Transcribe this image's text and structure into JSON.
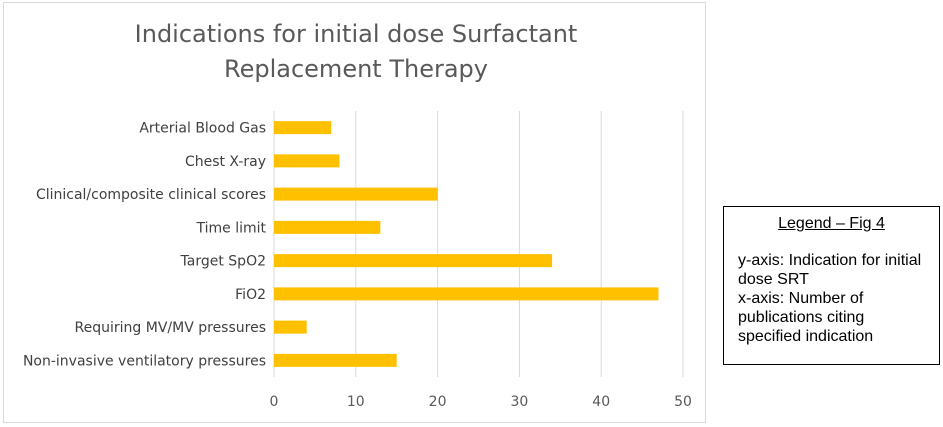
{
  "chart_data": {
    "type": "bar",
    "orientation": "horizontal",
    "title_lines": [
      "Indications for initial dose Surfactant",
      "Replacement Therapy"
    ],
    "categories": [
      "Arterial Blood Gas",
      "Chest X-ray",
      "Clinical/composite clinical scores",
      "Time limit",
      "Target SpO2",
      "FiO2",
      "Requiring MV/MV pressures",
      "Non-invasive ventilatory pressures"
    ],
    "values": [
      7,
      8,
      20,
      13,
      34,
      47,
      4,
      15
    ],
    "xlim": [
      0,
      50
    ],
    "xticks": [
      "0",
      "10",
      "20",
      "30",
      "40",
      "50"
    ],
    "grid": "vertical",
    "bar_color": "#FFC000"
  },
  "legend_note": {
    "heading": "Legend – Fig 4",
    "y_axis": "y-axis: Indication for initial dose SRT",
    "x_axis": "x-axis: Number of publications citing specified indication"
  }
}
